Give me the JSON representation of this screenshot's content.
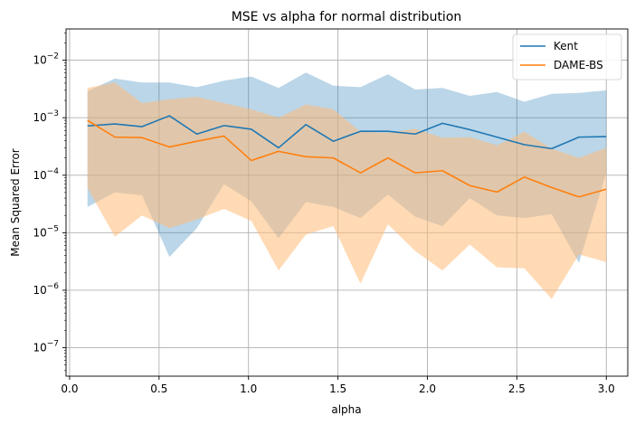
{
  "chart_data": {
    "type": "line",
    "title": "MSE vs alpha for normal distribution",
    "xlabel": "alpha",
    "ylabel": "Mean Squared Error",
    "yscale": "log",
    "xlim": [
      -0.02,
      3.12
    ],
    "ylim": [
      3.2e-08,
      0.035
    ],
    "grid": true,
    "legend_position": "top-right",
    "xticks": [
      0.0,
      0.5,
      1.0,
      1.5,
      2.0,
      2.5,
      3.0
    ],
    "xtick_labels": [
      "0.0",
      "0.5",
      "1.0",
      "1.5",
      "2.0",
      "2.5",
      "3.0"
    ],
    "yticks": [
      1e-07,
      1e-06,
      1e-05,
      0.0001,
      0.001,
      0.01
    ],
    "ytick_labels": [
      "10^-7",
      "10^-6",
      "10^-5",
      "10^-4",
      "10^-3",
      "10^-2"
    ],
    "x": [
      0.1,
      0.253,
      0.405,
      0.558,
      0.711,
      0.863,
      1.016,
      1.168,
      1.321,
      1.474,
      1.626,
      1.779,
      1.932,
      2.084,
      2.237,
      2.389,
      2.542,
      2.695,
      2.847,
      3.0
    ],
    "series": [
      {
        "name": "Kent",
        "color": "#1f77b4",
        "fill_color": "#1f77b4",
        "values": [
          0.00072,
          0.00078,
          0.0007,
          0.00108,
          0.00052,
          0.00073,
          0.00063,
          0.0003,
          0.00076,
          0.00039,
          0.00058,
          0.00058,
          0.00052,
          0.0008,
          0.00062,
          0.00046,
          0.00034,
          0.00029,
          0.00046,
          0.00047
        ],
        "upper": [
          0.0029,
          0.0048,
          0.0041,
          0.0041,
          0.0034,
          0.0044,
          0.0052,
          0.0033,
          0.0061,
          0.0036,
          0.0034,
          0.0057,
          0.0031,
          0.0033,
          0.0024,
          0.0028,
          0.0019,
          0.0026,
          0.0027,
          0.003
        ],
        "lower": [
          2.8e-05,
          5e-05,
          4.5e-05,
          3.8e-06,
          1.2e-05,
          7e-05,
          3.5e-05,
          8e-06,
          3.4e-05,
          2.8e-05,
          1.8e-05,
          4.6e-05,
          1.9e-05,
          1.3e-05,
          4e-05,
          2e-05,
          1.8e-05,
          2.1e-05,
          3e-06,
          0.00011
        ]
      },
      {
        "name": "DAME-BS",
        "color": "#ff7f0e",
        "fill_color": "#ffbb78",
        "values": [
          0.0009,
          0.00046,
          0.00045,
          0.00031,
          0.00039,
          0.00048,
          0.00018,
          0.00026,
          0.00021,
          0.0002,
          0.00011,
          0.0002,
          0.00011,
          0.00012,
          6.6e-05,
          5.1e-05,
          9.3e-05,
          6.1e-05,
          4.2e-05,
          5.7e-05
        ],
        "upper": [
          0.0033,
          0.0041,
          0.0018,
          0.0021,
          0.0023,
          0.0018,
          0.0014,
          0.001,
          0.0017,
          0.0014,
          0.00057,
          0.00055,
          0.00064,
          0.00045,
          0.00046,
          0.00033,
          0.00057,
          0.00029,
          0.0002,
          0.0003
        ],
        "lower": [
          6e-05,
          8.5e-06,
          2e-05,
          1.2e-05,
          1.7e-05,
          2.6e-05,
          1.6e-05,
          2.2e-06,
          9.3e-06,
          1.3e-05,
          1.3e-06,
          1.4e-05,
          4.8e-06,
          2.2e-06,
          6.2e-06,
          2.5e-06,
          2.4e-06,
          7e-07,
          4.2e-06,
          3.1e-06
        ]
      }
    ]
  }
}
